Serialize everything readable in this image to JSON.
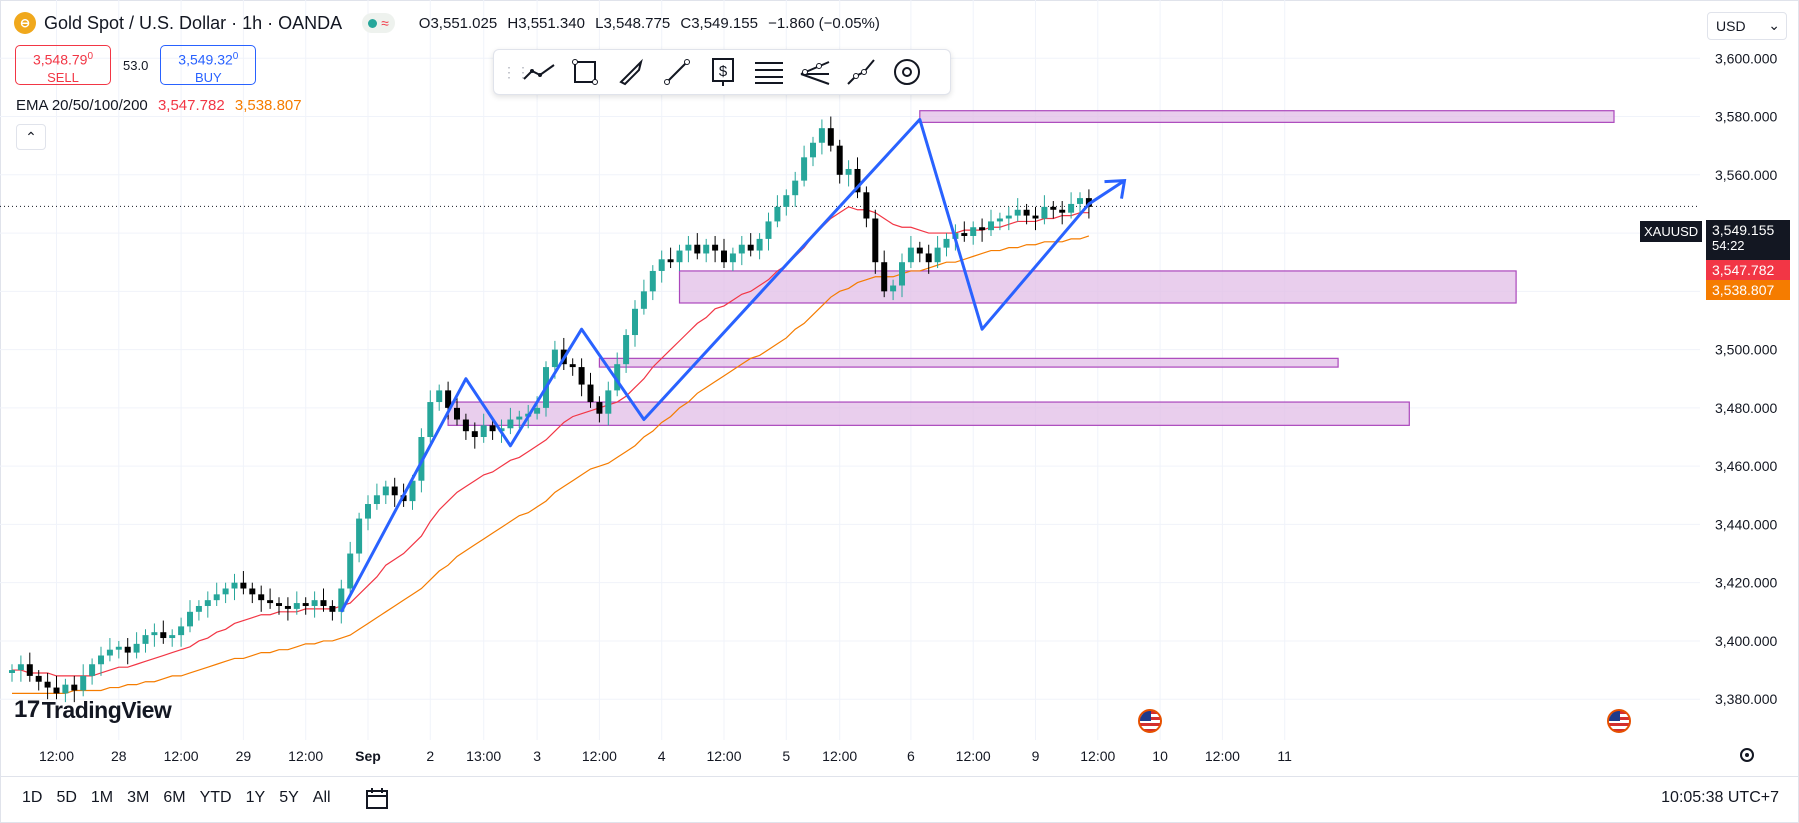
{
  "header": {
    "logo_glyph": "⊖",
    "title": "Gold Spot / U.S. Dollar · 1h · OANDA",
    "open": "O3,551.025",
    "high": "H3,551.340",
    "low": "L3,548.775",
    "close": "C3,549.155",
    "change": "−1.860 (−0.05%)"
  },
  "trade": {
    "sell_price": "3,548.79",
    "sell_sup": "0",
    "sell_label": "SELL",
    "spread": "53.0",
    "buy_price": "3,549.32",
    "buy_sup": "0",
    "buy_label": "BUY"
  },
  "ema": {
    "label": "EMA 20/50/100/200",
    "v1": "3,547.782",
    "v2": "3,538.807"
  },
  "collapse_glyph": "⌃",
  "currency": "USD",
  "colors": {
    "up": "#26a69a",
    "down": "#000000",
    "ema20": "#f23645",
    "ema50": "#f57c00",
    "drawing": "#2962ff",
    "zone_fill": "#e1bee7",
    "zone_border": "#ab47bc"
  },
  "toolbar_icons": [
    "trend-line-icon",
    "rectangle-icon",
    "brush-icon",
    "line-icon",
    "price-label-icon",
    "fib-icon",
    "pitchfork-icon",
    "path-icon",
    "circle-icon"
  ],
  "bottom": {
    "ranges": [
      "1D",
      "5D",
      "1M",
      "3M",
      "6M",
      "YTD",
      "1Y",
      "5Y",
      "All"
    ],
    "time": "10:05:38 UTC+7"
  },
  "brand": "TradingView",
  "chart_data": {
    "type": "candlestick",
    "symbol": "XAUUSD",
    "last_price": "3,549.155",
    "countdown": "54:22",
    "ema20_tag": "3,547.782",
    "ema50_tag": "3,538.807",
    "y_ticks": [
      "3,600.000",
      "3,580.000",
      "3,560.000",
      "3,540.000",
      "3,520.000",
      "3,500.000",
      "3,480.000",
      "3,460.000",
      "3,440.000",
      "3,420.000",
      "3,400.000",
      "3,380.000"
    ],
    "y_tick_values": [
      3600,
      3580,
      3560,
      3540,
      3520,
      3500,
      3480,
      3460,
      3440,
      3420,
      3400,
      3380
    ],
    "ylim": [
      3366,
      3620
    ],
    "x_ticks": [
      "12:00",
      "28",
      "12:00",
      "29",
      "12:00",
      "Sep",
      "2",
      "13:00",
      "3",
      "12:00",
      "4",
      "12:00",
      "5",
      "12:00",
      "6",
      "12:00",
      "9",
      "12:00",
      "10",
      "12:00",
      "11"
    ],
    "x_tick_index": [
      5,
      12,
      19,
      26,
      33,
      40,
      47,
      53,
      59,
      66,
      73,
      80,
      87,
      93,
      101,
      108,
      115,
      122,
      129,
      136,
      143
    ],
    "x_range": [
      0,
      152
    ],
    "closes": [
      3390,
      3392,
      3388,
      3386,
      3384,
      3382,
      3385,
      3383,
      3388,
      3392,
      3395,
      3397,
      3398,
      3396,
      3399,
      3402,
      3403,
      3401,
      3402,
      3405,
      3410,
      3412,
      3414,
      3416,
      3418,
      3420,
      3418,
      3416,
      3414,
      3413,
      3412,
      3411,
      3413,
      3412,
      3414,
      3412,
      3410,
      3418,
      3430,
      3442,
      3447,
      3450,
      3453,
      3450,
      3448,
      3455,
      3470,
      3482,
      3486,
      3480,
      3476,
      3472,
      3470,
      3474,
      3472,
      3473,
      3476,
      3477,
      3478,
      3480,
      3494,
      3500,
      3495,
      3494,
      3488,
      3482,
      3478,
      3486,
      3495,
      3505,
      3514,
      3520,
      3527,
      3531,
      3530,
      3534,
      3536,
      3533,
      3536,
      3534,
      3530,
      3533,
      3536,
      3534,
      3538,
      3544,
      3549,
      3553,
      3558,
      3566,
      3571,
      3576,
      3570,
      3560,
      3562,
      3554,
      3545,
      3530,
      3520,
      3522,
      3530,
      3535,
      3533,
      3530,
      3535,
      3538,
      3540,
      3539,
      3542,
      3541,
      3544,
      3545,
      3546,
      3548,
      3546,
      3545,
      3549,
      3548,
      3547,
      3550,
      3552,
      3549
    ],
    "ema20": [
      3390,
      3390,
      3389,
      3389,
      3389,
      3388,
      3388,
      3388,
      3388,
      3388,
      3389,
      3390,
      3391,
      3391,
      3392,
      3393,
      3394,
      3395,
      3396,
      3397,
      3398,
      3400,
      3401,
      3403,
      3404,
      3406,
      3407,
      3408,
      3409,
      3409,
      3410,
      3410,
      3410,
      3411,
      3411,
      3411,
      3411,
      3412,
      3413,
      3416,
      3419,
      3422,
      3426,
      3428,
      3430,
      3433,
      3436,
      3441,
      3445,
      3448,
      3451,
      3453,
      3455,
      3457,
      3458,
      3460,
      3462,
      3463,
      3465,
      3467,
      3469,
      3472,
      3475,
      3477,
      3478,
      3479,
      3480,
      3481,
      3482,
      3484,
      3487,
      3490,
      3494,
      3497,
      3500,
      3503,
      3506,
      3509,
      3511,
      3514,
      3515,
      3517,
      3519,
      3520,
      3522,
      3524,
      3527,
      3529,
      3532,
      3535,
      3539,
      3542,
      3545,
      3547,
      3549,
      3548,
      3548,
      3547,
      3545,
      3543,
      3542,
      3542,
      3541,
      3540,
      3540,
      3540,
      3540,
      3541,
      3541,
      3541,
      3542,
      3542,
      3543,
      3544,
      3544,
      3544,
      3545,
      3545,
      3546,
      3546,
      3547,
      3547
    ],
    "ema50": [
      3382,
      3382,
      3382,
      3382,
      3382,
      3382,
      3382,
      3383,
      3383,
      3383,
      3383,
      3384,
      3384,
      3385,
      3385,
      3386,
      3386,
      3387,
      3388,
      3388,
      3389,
      3390,
      3391,
      3392,
      3393,
      3394,
      3394,
      3395,
      3396,
      3396,
      3397,
      3397,
      3398,
      3399,
      3399,
      3400,
      3400,
      3401,
      3402,
      3404,
      3406,
      3408,
      3410,
      3412,
      3414,
      3416,
      3418,
      3421,
      3424,
      3426,
      3429,
      3431,
      3433,
      3435,
      3437,
      3439,
      3441,
      3443,
      3444,
      3446,
      3448,
      3451,
      3453,
      3455,
      3457,
      3459,
      3460,
      3461,
      3463,
      3465,
      3467,
      3470,
      3472,
      3475,
      3477,
      3480,
      3482,
      3485,
      3487,
      3489,
      3491,
      3493,
      3495,
      3497,
      3498,
      3500,
      3502,
      3504,
      3507,
      3509,
      3512,
      3515,
      3518,
      3520,
      3521,
      3523,
      3524,
      3525,
      3525,
      3525,
      3526,
      3527,
      3527,
      3528,
      3529,
      3530,
      3530,
      3531,
      3532,
      3533,
      3534,
      3534,
      3535,
      3535,
      3536,
      3536,
      3537,
      3537,
      3537,
      3538,
      3538,
      3539
    ],
    "zones": [
      {
        "i0": 102,
        "i1": 180,
        "y0": 3578,
        "y1": 3582
      },
      {
        "i0": 75,
        "i1": 169,
        "y0": 3516,
        "y1": 3527
      },
      {
        "i0": 66,
        "i1": 149,
        "y0": 3494,
        "y1": 3497
      },
      {
        "i0": 49,
        "i1": 157,
        "y0": 3474,
        "y1": 3482
      }
    ],
    "pattern": [
      {
        "i": 37,
        "v": 3410
      },
      {
        "i": 51,
        "v": 3490
      },
      {
        "i": 56,
        "v": 3467
      },
      {
        "i": 64,
        "v": 3507
      },
      {
        "i": 71,
        "v": 3476
      },
      {
        "i": 102,
        "v": 3579
      },
      {
        "i": 109,
        "v": 3507
      },
      {
        "i": 121,
        "v": 3550
      },
      {
        "i": 125,
        "v": 3558
      }
    ]
  }
}
